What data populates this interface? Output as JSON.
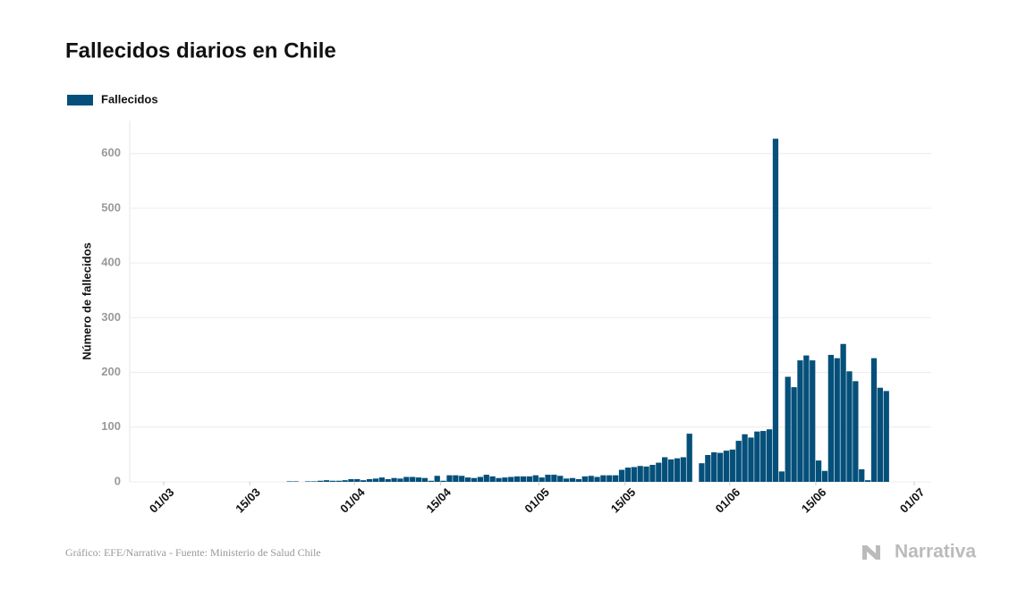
{
  "chart_data": {
    "type": "bar",
    "title": "Fallecidos diarios en Chile",
    "y_label": "Número de fallecidos",
    "source": "Gráfico: EFE/Narrativa - Fuente: Ministerio de Salud Chile",
    "brand": "Narrativa",
    "series": [
      {
        "name": "Fallecidos",
        "color": "#05507a",
        "values": [
          0,
          0,
          0,
          0,
          0,
          0,
          0,
          0,
          0,
          0,
          0,
          0,
          0,
          0,
          0,
          0,
          0,
          0,
          0,
          0,
          1,
          1,
          0,
          1,
          1,
          2,
          3,
          2,
          2,
          3,
          5,
          5,
          3,
          5,
          6,
          8,
          5,
          7,
          6,
          9,
          9,
          8,
          7,
          2,
          11,
          2,
          12,
          12,
          11,
          8,
          7,
          9,
          13,
          10,
          7,
          8,
          9,
          10,
          10,
          10,
          12,
          8,
          13,
          13,
          11,
          6,
          7,
          5,
          10,
          11,
          9,
          12,
          12,
          12,
          22,
          26,
          27,
          29,
          28,
          31,
          35,
          45,
          41,
          43,
          45,
          88,
          null,
          34,
          49,
          54,
          53,
          57,
          59,
          75,
          87,
          81,
          92,
          93,
          96,
          627,
          19,
          192,
          173,
          222,
          231,
          222,
          39,
          20,
          232,
          226,
          252,
          202,
          184,
          23,
          3,
          226,
          172,
          166,
          null,
          null,
          null,
          null,
          null
        ]
      }
    ],
    "categories": [
      "01/03",
      null,
      null,
      null,
      null,
      null,
      null,
      null,
      null,
      null,
      null,
      null,
      null,
      null,
      "15/03",
      null,
      null,
      null,
      null,
      null,
      null,
      null,
      null,
      null,
      null,
      null,
      null,
      null,
      null,
      null,
      null,
      "01/04",
      null,
      null,
      null,
      null,
      null,
      null,
      null,
      null,
      null,
      null,
      null,
      null,
      null,
      "15/04",
      null,
      null,
      null,
      null,
      null,
      null,
      null,
      null,
      null,
      null,
      null,
      null,
      null,
      null,
      null,
      "01/05",
      null,
      null,
      null,
      null,
      null,
      null,
      null,
      null,
      null,
      null,
      null,
      null,
      null,
      "15/05",
      null,
      null,
      null,
      null,
      null,
      null,
      null,
      null,
      null,
      null,
      null,
      null,
      null,
      null,
      null,
      null,
      "01/06",
      null,
      null,
      null,
      null,
      null,
      null,
      null,
      null,
      null,
      null,
      null,
      null,
      null,
      "15/06",
      null,
      null,
      null,
      null,
      null,
      null,
      null,
      null,
      null,
      null,
      null,
      null,
      null,
      null,
      null,
      "01/07"
    ],
    "ylim": [
      0,
      660
    ],
    "yticks": [
      0,
      100,
      200,
      300,
      400,
      500,
      600
    ],
    "grid": true
  }
}
